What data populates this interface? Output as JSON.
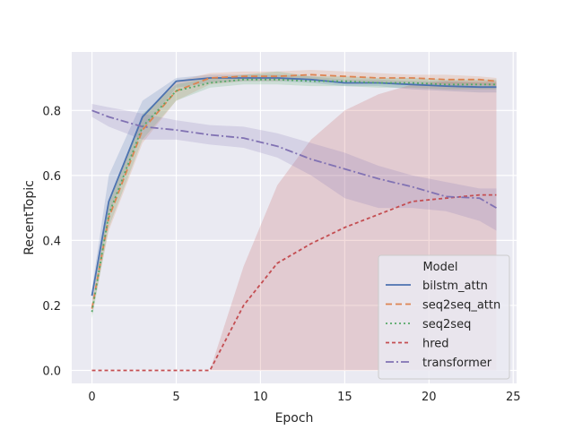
{
  "chart_data": {
    "type": "line",
    "title": "",
    "xlabel": "Epoch",
    "ylabel": "RecentTopic",
    "xlim": [
      -1.2,
      25.2
    ],
    "ylim": [
      -0.04,
      0.98
    ],
    "xticks": [
      0,
      5,
      10,
      15,
      20,
      25
    ],
    "yticks": [
      0.0,
      0.2,
      0.4,
      0.6,
      0.8
    ],
    "xtick_labels": [
      "0",
      "5",
      "10",
      "15",
      "20",
      "25"
    ],
    "ytick_labels": [
      "0.0",
      "0.2",
      "0.4",
      "0.6",
      "0.8"
    ],
    "grid": true,
    "legend": {
      "title": "Model",
      "position": "lower-right"
    },
    "x": [
      0,
      1,
      3,
      5,
      7,
      9,
      11,
      13,
      15,
      17,
      19,
      21,
      23,
      24
    ],
    "series": [
      {
        "name": "bilstm_attn",
        "color": "#4c72b0",
        "dash": "",
        "values": [
          0.23,
          0.52,
          0.78,
          0.89,
          0.9,
          0.9,
          0.9,
          0.895,
          0.885,
          0.885,
          0.88,
          0.875,
          0.872,
          0.872
        ],
        "lower": [
          0.21,
          0.48,
          0.74,
          0.87,
          0.885,
          0.89,
          0.89,
          0.885,
          0.875,
          0.875,
          0.865,
          0.86,
          0.855,
          0.855
        ],
        "upper": [
          0.25,
          0.6,
          0.83,
          0.9,
          0.91,
          0.91,
          0.91,
          0.905,
          0.895,
          0.895,
          0.89,
          0.89,
          0.885,
          0.885
        ]
      },
      {
        "name": "seq2seq_attn",
        "color": "#dd8452",
        "dash": "7,4",
        "values": [
          0.19,
          0.47,
          0.74,
          0.86,
          0.9,
          0.905,
          0.905,
          0.91,
          0.905,
          0.9,
          0.9,
          0.895,
          0.895,
          0.89
        ],
        "lower": [
          0.17,
          0.43,
          0.7,
          0.83,
          0.88,
          0.89,
          0.89,
          0.895,
          0.89,
          0.885,
          0.885,
          0.88,
          0.88,
          0.875
        ],
        "upper": [
          0.21,
          0.51,
          0.78,
          0.89,
          0.915,
          0.92,
          0.92,
          0.925,
          0.92,
          0.915,
          0.91,
          0.91,
          0.905,
          0.9
        ]
      },
      {
        "name": "seq2seq",
        "color": "#55a868",
        "dash": "2,3",
        "values": [
          0.18,
          0.48,
          0.75,
          0.86,
          0.885,
          0.895,
          0.895,
          0.89,
          0.89,
          0.885,
          0.885,
          0.88,
          0.88,
          0.88
        ],
        "lower": [
          0.16,
          0.44,
          0.71,
          0.83,
          0.87,
          0.88,
          0.88,
          0.875,
          0.875,
          0.87,
          0.87,
          0.865,
          0.865,
          0.865
        ],
        "upper": [
          0.2,
          0.52,
          0.79,
          0.88,
          0.9,
          0.91,
          0.92,
          0.905,
          0.905,
          0.9,
          0.9,
          0.895,
          0.895,
          0.895
        ]
      },
      {
        "name": "hred",
        "color": "#c44e52",
        "dash": "4,3",
        "values": [
          0.0,
          0.0,
          0.0,
          0.0,
          0.0,
          0.2,
          0.33,
          0.39,
          0.44,
          0.48,
          0.52,
          0.53,
          0.54,
          0.54
        ],
        "lower": [
          0.0,
          0.0,
          0.0,
          0.0,
          0.0,
          0.0,
          0.0,
          0.0,
          0.0,
          0.0,
          0.0,
          0.0,
          0.0,
          0.0
        ],
        "upper": [
          0.0,
          0.0,
          0.0,
          0.0,
          0.0,
          0.32,
          0.57,
          0.71,
          0.8,
          0.85,
          0.88,
          0.89,
          0.89,
          0.89
        ]
      },
      {
        "name": "transformer",
        "color": "#8172b3",
        "dash": "9,3,2,3",
        "values": [
          0.8,
          0.78,
          0.75,
          0.74,
          0.725,
          0.715,
          0.69,
          0.65,
          0.62,
          0.59,
          0.565,
          0.535,
          0.53,
          0.5
        ],
        "lower": [
          0.78,
          0.75,
          0.71,
          0.71,
          0.695,
          0.685,
          0.655,
          0.6,
          0.53,
          0.5,
          0.5,
          0.49,
          0.46,
          0.43
        ],
        "upper": [
          0.82,
          0.81,
          0.79,
          0.77,
          0.755,
          0.75,
          0.73,
          0.7,
          0.67,
          0.63,
          0.6,
          0.58,
          0.56,
          0.56
        ]
      }
    ]
  }
}
